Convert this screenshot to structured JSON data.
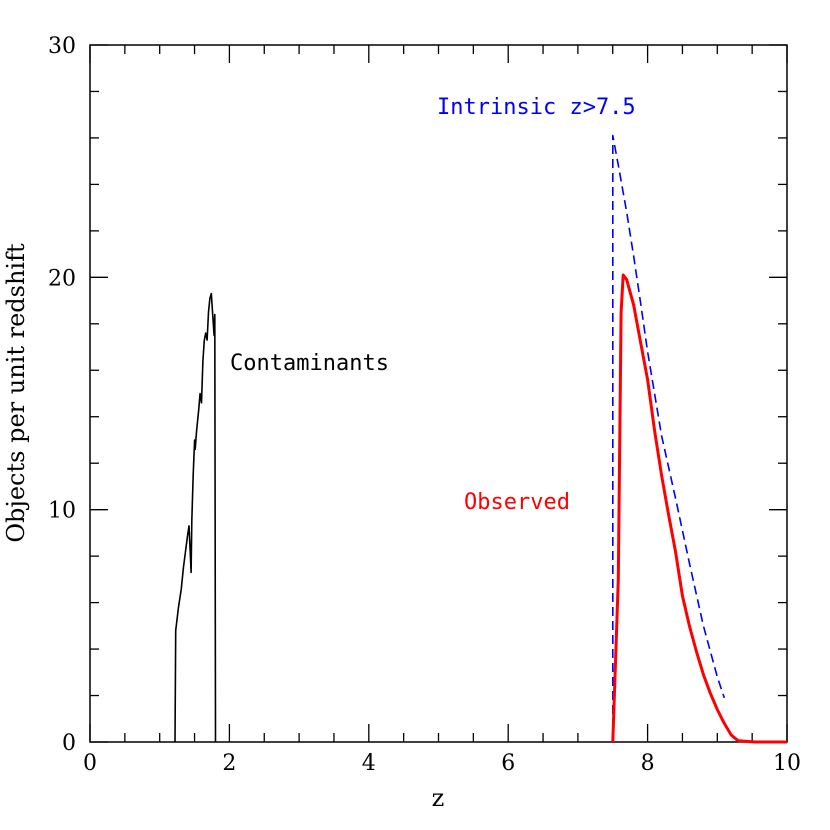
{
  "chart_data": {
    "type": "line",
    "xlabel": "z",
    "ylabel": "Objects per unit redshift",
    "xlim": [
      0,
      10
    ],
    "ylim": [
      0,
      30
    ],
    "x_ticks": [
      0,
      2,
      4,
      6,
      8,
      10
    ],
    "y_ticks": [
      0,
      10,
      20,
      30
    ],
    "x_tick_labels": [
      "0",
      "2",
      "4",
      "6",
      "8",
      "10"
    ],
    "y_tick_labels": [
      "0",
      "10",
      "20",
      "30"
    ],
    "grid": false,
    "legend": "none",
    "series": [
      {
        "label_text": "Contaminants",
        "color": "#000000",
        "style": "solid",
        "points": [
          [
            1.22,
            0
          ],
          [
            1.23,
            4.8
          ],
          [
            1.27,
            5.8
          ],
          [
            1.31,
            6.6
          ],
          [
            1.34,
            7.5
          ],
          [
            1.37,
            8.2
          ],
          [
            1.4,
            8.9
          ],
          [
            1.42,
            9.3
          ],
          [
            1.44,
            8.0
          ],
          [
            1.45,
            7.3
          ],
          [
            1.46,
            9.5
          ],
          [
            1.48,
            11.5
          ],
          [
            1.5,
            13.0
          ],
          [
            1.51,
            12.6
          ],
          [
            1.53,
            13.4
          ],
          [
            1.56,
            14.3
          ],
          [
            1.58,
            15.0
          ],
          [
            1.6,
            14.6
          ],
          [
            1.62,
            16.4
          ],
          [
            1.64,
            17.3
          ],
          [
            1.66,
            17.6
          ],
          [
            1.68,
            17.3
          ],
          [
            1.7,
            18.5
          ],
          [
            1.72,
            19.1
          ],
          [
            1.74,
            19.3
          ],
          [
            1.76,
            18.4
          ],
          [
            1.78,
            17.5
          ],
          [
            1.79,
            18.4
          ],
          [
            1.8,
            0
          ]
        ]
      },
      {
        "label_text": "Intrinsic z>7.5",
        "color": "#0000ff",
        "style": "dashed",
        "points": [
          [
            7.5,
            0
          ],
          [
            7.5,
            26.1
          ],
          [
            7.6,
            24.5
          ],
          [
            7.7,
            22.8
          ],
          [
            7.8,
            20.9
          ],
          [
            7.9,
            18.9
          ],
          [
            8.0,
            16.8
          ],
          [
            8.2,
            13.2
          ],
          [
            8.4,
            10.5
          ],
          [
            8.6,
            7.7
          ],
          [
            8.8,
            5.0
          ],
          [
            9.0,
            2.8
          ],
          [
            9.1,
            1.9
          ]
        ]
      },
      {
        "label_text": "Observed",
        "color": "#ff0000",
        "style": "solid",
        "points": [
          [
            7.5,
            0
          ],
          [
            7.58,
            7.0
          ],
          [
            7.62,
            18.5
          ],
          [
            7.65,
            20.1
          ],
          [
            7.7,
            19.9
          ],
          [
            7.8,
            18.8
          ],
          [
            7.9,
            17.2
          ],
          [
            8.0,
            15.6
          ],
          [
            8.1,
            13.4
          ],
          [
            8.2,
            11.5
          ],
          [
            8.3,
            9.8
          ],
          [
            8.4,
            8.2
          ],
          [
            8.5,
            6.3
          ],
          [
            8.6,
            5.0
          ],
          [
            8.7,
            3.9
          ],
          [
            8.8,
            2.9
          ],
          [
            8.9,
            2.1
          ],
          [
            9.0,
            1.4
          ],
          [
            9.1,
            0.8
          ],
          [
            9.2,
            0.3
          ],
          [
            9.3,
            0.05
          ],
          [
            9.55,
            0
          ],
          [
            10,
            0
          ]
        ]
      }
    ]
  }
}
